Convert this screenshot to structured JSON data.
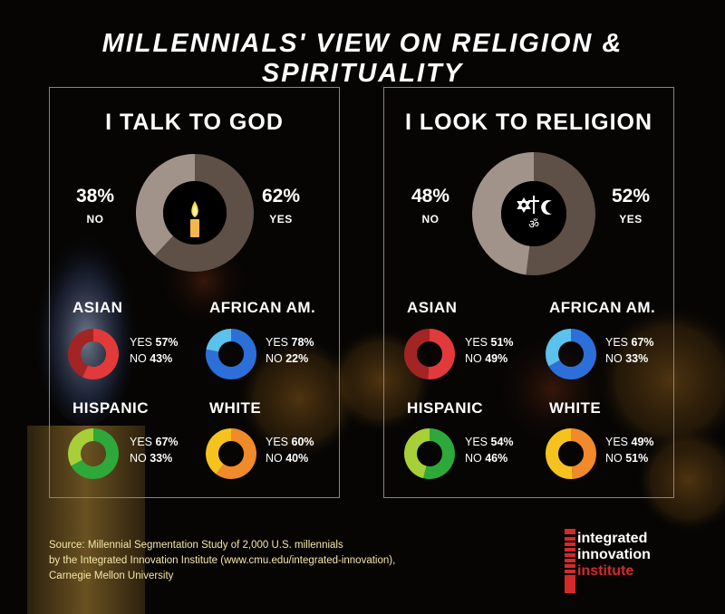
{
  "title": "MILLENNIALS' VIEW ON RELIGION & SPIRITUALITY",
  "colors": {
    "overall_no": "#a2938a",
    "overall_yes": "#5e4f47",
    "asian_yes": "#e23a3a",
    "asian_no": "#a32424",
    "african_yes": "#2d6fd8",
    "african_no": "#5cc1ec",
    "hispanic_yes": "#2ea83a",
    "hispanic_no": "#a7cf37",
    "white_yes": "#f08a2a",
    "white_no": "#f6c21e"
  },
  "chart_data": [
    {
      "type": "pie",
      "title": "I TALK TO GOD",
      "icon": "candle-icon",
      "overall": {
        "no_pct": "38%",
        "no_label": "NO",
        "no": 38,
        "yes_pct": "62%",
        "yes_label": "YES",
        "yes": 62
      },
      "groups": [
        {
          "name": "ASIAN",
          "yes_text": "YES",
          "yes_value": "57%",
          "no_text": "NO",
          "no_value": "43%",
          "yes": 57,
          "no": 43
        },
        {
          "name": "AFRICAN AM.",
          "yes_text": "YES",
          "yes_value": "78%",
          "no_text": "NO",
          "no_value": "22%",
          "yes": 78,
          "no": 22
        },
        {
          "name": "HISPANIC",
          "yes_text": "YES",
          "yes_value": "67%",
          "no_text": "NO",
          "no_value": "33%",
          "yes": 67,
          "no": 33
        },
        {
          "name": "WHITE",
          "yes_text": "YES",
          "yes_value": "60%",
          "no_text": "NO",
          "no_value": "40%",
          "yes": 60,
          "no": 40
        }
      ]
    },
    {
      "type": "pie",
      "title": "I LOOK TO RELIGION",
      "icon": "religious-symbols-icon",
      "overall": {
        "no_pct": "48%",
        "no_label": "NO",
        "no": 48,
        "yes_pct": "52%",
        "yes_label": "YES",
        "yes": 52
      },
      "groups": [
        {
          "name": "ASIAN",
          "yes_text": "YES",
          "yes_value": "51%",
          "no_text": "NO",
          "no_value": "49%",
          "yes": 51,
          "no": 49
        },
        {
          "name": "AFRICAN AM.",
          "yes_text": "YES",
          "yes_value": "67%",
          "no_text": "NO",
          "no_value": "33%",
          "yes": 67,
          "no": 33
        },
        {
          "name": "HISPANIC",
          "yes_text": "YES",
          "yes_value": "54%",
          "no_text": "NO",
          "no_value": "46%",
          "yes": 54,
          "no": 46
        },
        {
          "name": "WHITE",
          "yes_text": "YES",
          "yes_value": "49%",
          "no_text": "NO",
          "no_value": "51%",
          "yes": 49,
          "no": 51
        }
      ]
    }
  ],
  "source": {
    "line1": "Source: Millennial Segmentation Study of 2,000 U.S. millennials",
    "line2": "by the Integrated Innovation Institute (www.cmu.edu/integrated-innovation),",
    "line3": "Carnegie Mellon University"
  },
  "logo": {
    "line1": "integrated",
    "line2": "innovation",
    "line3": "institute"
  }
}
